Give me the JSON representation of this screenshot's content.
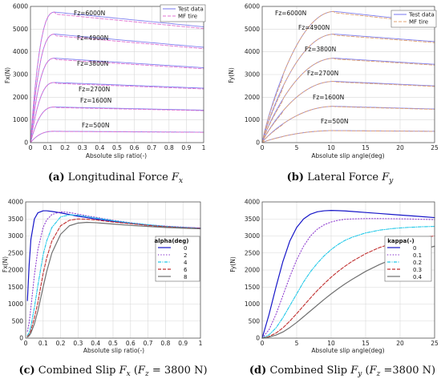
{
  "chart_data": [
    {
      "type": "line",
      "ylabel": "Fx(N)",
      "xlabel": "Absolute slip ratio(-)",
      "xlim": [
        0,
        1
      ],
      "ylim": [
        0,
        6000
      ],
      "xticks": [
        "0",
        "0.1",
        "0.2",
        "0.3",
        "0.4",
        "0.5",
        "0.6",
        "0.7",
        "0.8",
        "0.9",
        "1"
      ],
      "yticks": [
        "0",
        "1000",
        "2000",
        "3000",
        "4000",
        "5000",
        "6000"
      ],
      "legend": {
        "position": "top-right",
        "entries": [
          {
            "name": "Test data",
            "color": "#8080f0",
            "style": "solid"
          },
          {
            "name": "MF tire",
            "color": "#e070d0",
            "style": "dashed"
          }
        ]
      },
      "annotations": [
        "Fz=6000N",
        "Fz=4900N",
        "Fz=3800N",
        "Fz=2700N",
        "Fz=1600N",
        "Fz=500N"
      ],
      "curve_levels": [
        {
          "peak": 5750,
          "end": 5100
        },
        {
          "peak": 4780,
          "end": 4200
        },
        {
          "peak": 3720,
          "end": 3300
        },
        {
          "peak": 2650,
          "end": 2400
        },
        {
          "peak": 1570,
          "end": 1430
        },
        {
          "peak": 500,
          "end": 460
        }
      ],
      "x": [
        0,
        0.01,
        0.02,
        0.03,
        0.05,
        0.07,
        0.1,
        0.13,
        0.16,
        0.2,
        0.3,
        0.4,
        0.5,
        0.6,
        0.7,
        0.8,
        0.9,
        1.0
      ],
      "caption_prefix": "(a)",
      "caption_text": "Longitudinal Force",
      "caption_var": "F",
      "caption_sub": "x"
    },
    {
      "type": "line",
      "ylabel": "Fy(N)",
      "xlabel": "Absolute slip angle(deg)",
      "xlim": [
        0,
        25
      ],
      "ylim": [
        0,
        6000
      ],
      "xticks": [
        "0",
        "5",
        "10",
        "15",
        "20",
        "25"
      ],
      "yticks": [
        "0",
        "1000",
        "2000",
        "3000",
        "4000",
        "5000",
        "6000"
      ],
      "legend": {
        "position": "top-right",
        "entries": [
          {
            "name": "Test data",
            "color": "#8080f0",
            "style": "solid"
          },
          {
            "name": "MF tire",
            "color": "#e0a070",
            "style": "dashed"
          }
        ]
      },
      "annotations": [
        "Fz=6000N",
        "Fz=4900N",
        "Fz=3800N",
        "Fz=2700N",
        "Fz=1600N",
        "Fz=500N"
      ],
      "curve_levels": [
        {
          "peak": 5780,
          "end": 5300
        },
        {
          "peak": 4780,
          "end": 4450
        },
        {
          "peak": 3720,
          "end": 3450
        },
        {
          "peak": 2700,
          "end": 2500
        },
        {
          "peak": 1600,
          "end": 1480
        },
        {
          "peak": 530,
          "end": 500
        }
      ],
      "x": [
        0,
        1,
        2,
        3,
        4,
        5,
        6,
        7,
        8,
        9,
        10,
        11,
        12,
        13,
        15,
        17,
        19,
        21,
        23,
        25
      ],
      "caption_prefix": "(b)",
      "caption_text": "Lateral Force",
      "caption_var": "F",
      "caption_sub": "y"
    },
    {
      "type": "line",
      "ylabel": "Fx(N)",
      "xlabel": "Absolute slip ratio(-)",
      "xlim": [
        0,
        1
      ],
      "ylim": [
        0,
        4000
      ],
      "xticks": [
        "0",
        "0.1",
        "0.2",
        "0.3",
        "0.4",
        "0.5",
        "0.6",
        "0.7",
        "0.8",
        "0.9",
        "1"
      ],
      "yticks": [
        "0",
        "500",
        "1000",
        "1500",
        "2000",
        "2500",
        "3000",
        "3500",
        "4000"
      ],
      "legend": {
        "position": "center-right",
        "title": "alpha(deg)"
      },
      "x": [
        0.01,
        0.02,
        0.03,
        0.05,
        0.07,
        0.1,
        0.12,
        0.15,
        0.2,
        0.25,
        0.3,
        0.35,
        0.4,
        0.5,
        0.6,
        0.7,
        0.8,
        0.9,
        1.0
      ],
      "series": [
        {
          "name": "0",
          "color": "#1515c8",
          "style": "solid",
          "values": [
            1100,
            2150,
            2900,
            3500,
            3680,
            3740,
            3740,
            3720,
            3680,
            3630,
            3580,
            3540,
            3500,
            3430,
            3370,
            3320,
            3280,
            3250,
            3230
          ]
        },
        {
          "name": "2",
          "color": "#9040d0",
          "style": "dotted",
          "values": [
            200,
            450,
            900,
            1850,
            2600,
            3250,
            3470,
            3630,
            3710,
            3690,
            3640,
            3590,
            3550,
            3460,
            3390,
            3330,
            3290,
            3260,
            3230
          ]
        },
        {
          "name": "4",
          "color": "#20c8e8",
          "style": "dashdot",
          "values": [
            80,
            160,
            350,
            900,
            1550,
            2450,
            2850,
            3250,
            3560,
            3620,
            3610,
            3570,
            3530,
            3450,
            3380,
            3330,
            3280,
            3250,
            3220
          ]
        },
        {
          "name": "6",
          "color": "#c03030",
          "style": "dashed",
          "values": [
            50,
            100,
            220,
            600,
            1050,
            1900,
            2350,
            2850,
            3300,
            3460,
            3500,
            3490,
            3470,
            3410,
            3360,
            3310,
            3270,
            3240,
            3220
          ]
        },
        {
          "name": "8",
          "color": "#707070",
          "style": "solid",
          "values": [
            30,
            70,
            150,
            420,
            800,
            1500,
            1950,
            2500,
            3050,
            3300,
            3380,
            3400,
            3390,
            3350,
            3310,
            3280,
            3250,
            3230,
            3210
          ]
        }
      ],
      "caption_prefix": "(c)",
      "caption_text": "Combined Slip",
      "caption_var": "F",
      "caption_sub": "x",
      "caption_paren_open": "(",
      "caption_var2": "F",
      "caption_sub2": "z",
      "caption_eq": "= 3800 N)"
    },
    {
      "type": "line",
      "ylabel": "Fy(N)",
      "xlabel": "Absolute slip angle(deg)",
      "xlim": [
        0,
        25
      ],
      "ylim": [
        0,
        4000
      ],
      "xticks": [
        "0",
        "5",
        "10",
        "15",
        "20",
        "25"
      ],
      "yticks": [
        "0",
        "500",
        "1000",
        "1500",
        "2000",
        "2500",
        "3000",
        "3500",
        "4000"
      ],
      "legend": {
        "position": "center-right",
        "title": "kappa(-)"
      },
      "x": [
        0,
        1,
        2,
        3,
        4,
        5,
        6,
        7,
        8,
        9,
        10,
        11,
        12,
        13,
        15,
        17,
        19,
        21,
        23,
        25
      ],
      "series": [
        {
          "name": "0",
          "color": "#1515c8",
          "style": "solid",
          "values": [
            0,
            700,
            1500,
            2250,
            2850,
            3250,
            3500,
            3640,
            3710,
            3740,
            3750,
            3745,
            3735,
            3720,
            3690,
            3660,
            3630,
            3600,
            3570,
            3540
          ]
        },
        {
          "name": "0.1",
          "color": "#9040d0",
          "style": "dotted",
          "values": [
            0,
            250,
            700,
            1250,
            1800,
            2300,
            2700,
            3000,
            3200,
            3330,
            3410,
            3460,
            3490,
            3500,
            3510,
            3510,
            3505,
            3500,
            3490,
            3480
          ]
        },
        {
          "name": "0.2",
          "color": "#20c8e8",
          "style": "dashdot",
          "values": [
            0,
            100,
            300,
            600,
            950,
            1300,
            1650,
            1950,
            2200,
            2420,
            2600,
            2750,
            2870,
            2960,
            3090,
            3170,
            3220,
            3250,
            3270,
            3280
          ]
        },
        {
          "name": "0.3",
          "color": "#c03030",
          "style": "dashed",
          "values": [
            0,
            50,
            150,
            300,
            500,
            720,
            950,
            1180,
            1400,
            1600,
            1790,
            1960,
            2110,
            2250,
            2480,
            2660,
            2790,
            2880,
            2950,
            3000
          ]
        },
        {
          "name": "0.4",
          "color": "#707070",
          "style": "solid",
          "values": [
            0,
            30,
            90,
            180,
            310,
            460,
            630,
            800,
            970,
            1140,
            1300,
            1450,
            1590,
            1720,
            1960,
            2160,
            2330,
            2470,
            2590,
            2700
          ]
        }
      ],
      "caption_prefix": "(d)",
      "caption_text": "Combined Slip",
      "caption_var": "F",
      "caption_sub": "y",
      "caption_paren_open": "(",
      "caption_var2": "F",
      "caption_sub2": "z",
      "caption_eq": "=3800 N)"
    }
  ]
}
